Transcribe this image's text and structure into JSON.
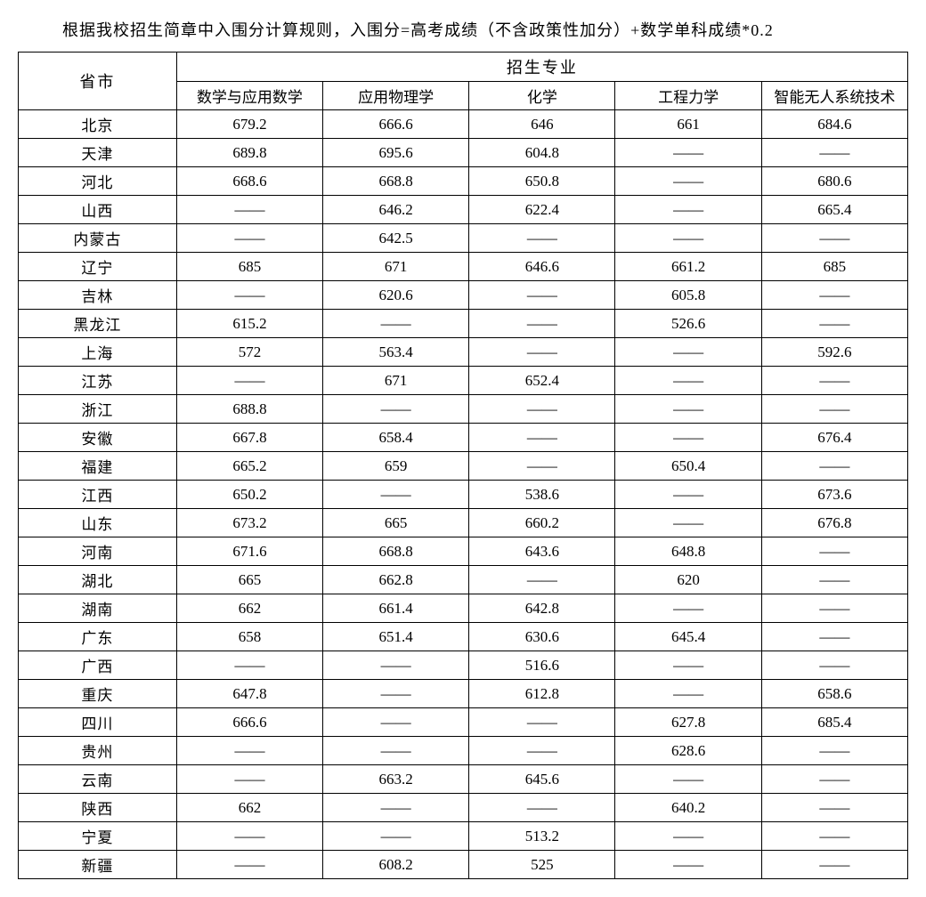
{
  "caption": "根据我校招生简章中入围分计算规则，入围分=高考成绩（不含政策性加分）+数学单科成绩*0.2",
  "headers": {
    "province": "省市",
    "majors_group": "招生专业",
    "majors": [
      "数学与应用数学",
      "应用物理学",
      "化学",
      "工程力学",
      "智能无人系统技术"
    ]
  },
  "empty_marker": "——",
  "rows": [
    {
      "province": "北京",
      "values": [
        "679.2",
        "666.6",
        "646",
        "661",
        "684.6"
      ]
    },
    {
      "province": "天津",
      "values": [
        "689.8",
        "695.6",
        "604.8",
        "——",
        "——"
      ]
    },
    {
      "province": "河北",
      "values": [
        "668.6",
        "668.8",
        "650.8",
        "——",
        "680.6"
      ]
    },
    {
      "province": "山西",
      "values": [
        "——",
        "646.2",
        "622.4",
        "——",
        "665.4"
      ]
    },
    {
      "province": "内蒙古",
      "values": [
        "——",
        "642.5",
        "——",
        "——",
        "——"
      ]
    },
    {
      "province": "辽宁",
      "values": [
        "685",
        "671",
        "646.6",
        "661.2",
        "685"
      ]
    },
    {
      "province": "吉林",
      "values": [
        "——",
        "620.6",
        "——",
        "605.8",
        "——"
      ]
    },
    {
      "province": "黑龙江",
      "values": [
        "615.2",
        "——",
        "——",
        "526.6",
        "——"
      ]
    },
    {
      "province": "上海",
      "values": [
        "572",
        "563.4",
        "——",
        "——",
        "592.6"
      ]
    },
    {
      "province": "江苏",
      "values": [
        "——",
        "671",
        "652.4",
        "——",
        "——"
      ]
    },
    {
      "province": "浙江",
      "values": [
        "688.8",
        "——",
        "——",
        "——",
        "——"
      ]
    },
    {
      "province": "安徽",
      "values": [
        "667.8",
        "658.4",
        "——",
        "——",
        "676.4"
      ]
    },
    {
      "province": "福建",
      "values": [
        "665.2",
        "659",
        "——",
        "650.4",
        "——"
      ]
    },
    {
      "province": "江西",
      "values": [
        "650.2",
        "——",
        "538.6",
        "——",
        "673.6"
      ]
    },
    {
      "province": "山东",
      "values": [
        "673.2",
        "665",
        "660.2",
        "——",
        "676.8"
      ]
    },
    {
      "province": "河南",
      "values": [
        "671.6",
        "668.8",
        "643.6",
        "648.8",
        "——"
      ]
    },
    {
      "province": "湖北",
      "values": [
        "665",
        "662.8",
        "——",
        "620",
        "——"
      ]
    },
    {
      "province": "湖南",
      "values": [
        "662",
        "661.4",
        "642.8",
        "——",
        "——"
      ]
    },
    {
      "province": "广东",
      "values": [
        "658",
        "651.4",
        "630.6",
        "645.4",
        "——"
      ]
    },
    {
      "province": "广西",
      "values": [
        "——",
        "——",
        "516.6",
        "——",
        "——"
      ]
    },
    {
      "province": "重庆",
      "values": [
        "647.8",
        "——",
        "612.8",
        "——",
        "658.6"
      ]
    },
    {
      "province": "四川",
      "values": [
        "666.6",
        "——",
        "——",
        "627.8",
        "685.4"
      ]
    },
    {
      "province": "贵州",
      "values": [
        "——",
        "——",
        "——",
        "628.6",
        "——"
      ]
    },
    {
      "province": "云南",
      "values": [
        "——",
        "663.2",
        "645.6",
        "——",
        "——"
      ]
    },
    {
      "province": "陕西",
      "values": [
        "662",
        "——",
        "——",
        "640.2",
        "——"
      ]
    },
    {
      "province": "宁夏",
      "values": [
        "——",
        "——",
        "513.2",
        "——",
        "——"
      ]
    },
    {
      "province": "新疆",
      "values": [
        "——",
        "608.2",
        "525",
        "——",
        "——"
      ]
    }
  ],
  "style": {
    "font_family": "SimSun",
    "text_color": "#000000",
    "background_color": "#ffffff",
    "border_color": "#000000",
    "caption_fontsize": 18,
    "cell_fontsize": 17,
    "num_columns": 6,
    "num_data_rows": 27
  }
}
